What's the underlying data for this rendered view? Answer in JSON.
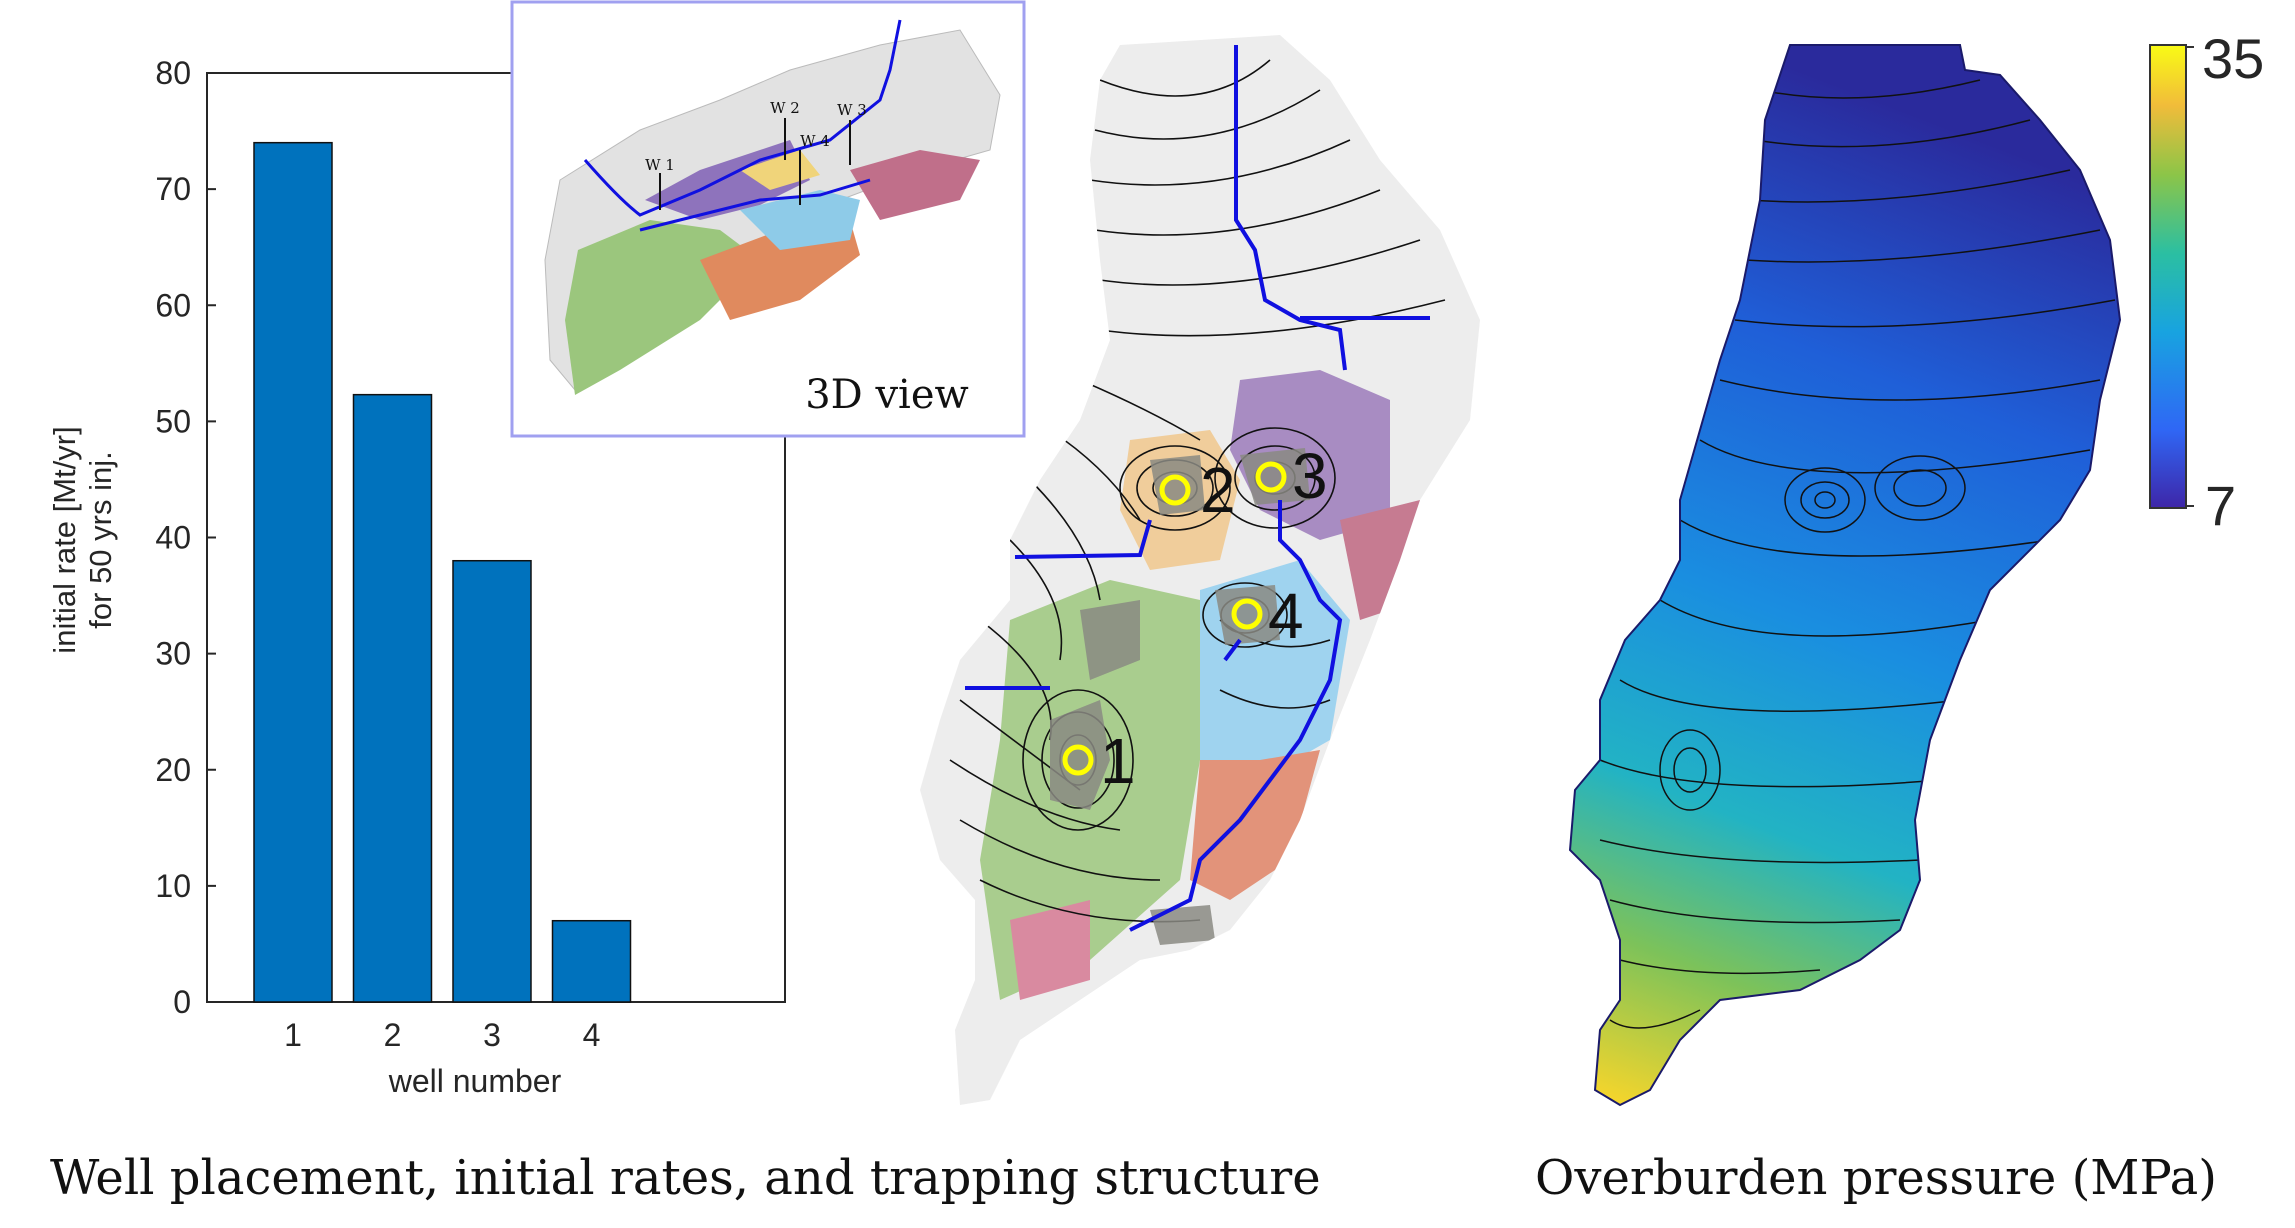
{
  "chart_data": [
    {
      "type": "bar",
      "categories": [
        "1",
        "2",
        "3",
        "4"
      ],
      "values": [
        74,
        52.3,
        38,
        7
      ],
      "xlabel": "well number",
      "ylabel": [
        "initial rate [Mt/yr]",
        "for 50 yrs inj."
      ],
      "ylim": [
        0,
        80
      ],
      "yticks": [
        0,
        10,
        20,
        30,
        40,
        50,
        60,
        70,
        80
      ],
      "bar_color": "#0072bd",
      "grid": false
    },
    {
      "type": "heatmap",
      "title": "Overburden pressure (MPa)",
      "colorbar": {
        "min_label": "7",
        "max_label": "35",
        "min": 7,
        "max": 35,
        "colormap": [
          "#3e26a8",
          "#2f67f5",
          "#18a3e0",
          "#2bbfa2",
          "#8cc548",
          "#f1bc3a",
          "#f9fb15"
        ]
      }
    }
  ],
  "inset": {
    "label": "3D view",
    "well_labels": [
      "W 1",
      "W 2",
      "W 3",
      "W 4"
    ]
  },
  "map": {
    "well_numbers": [
      "1",
      "2",
      "3",
      "4"
    ],
    "well_marker_color": "#ffff00",
    "path_color": "#1010e0"
  },
  "captions": {
    "left": "Well placement, initial rates, and trapping structure",
    "right": "Overburden pressure (MPa)"
  }
}
